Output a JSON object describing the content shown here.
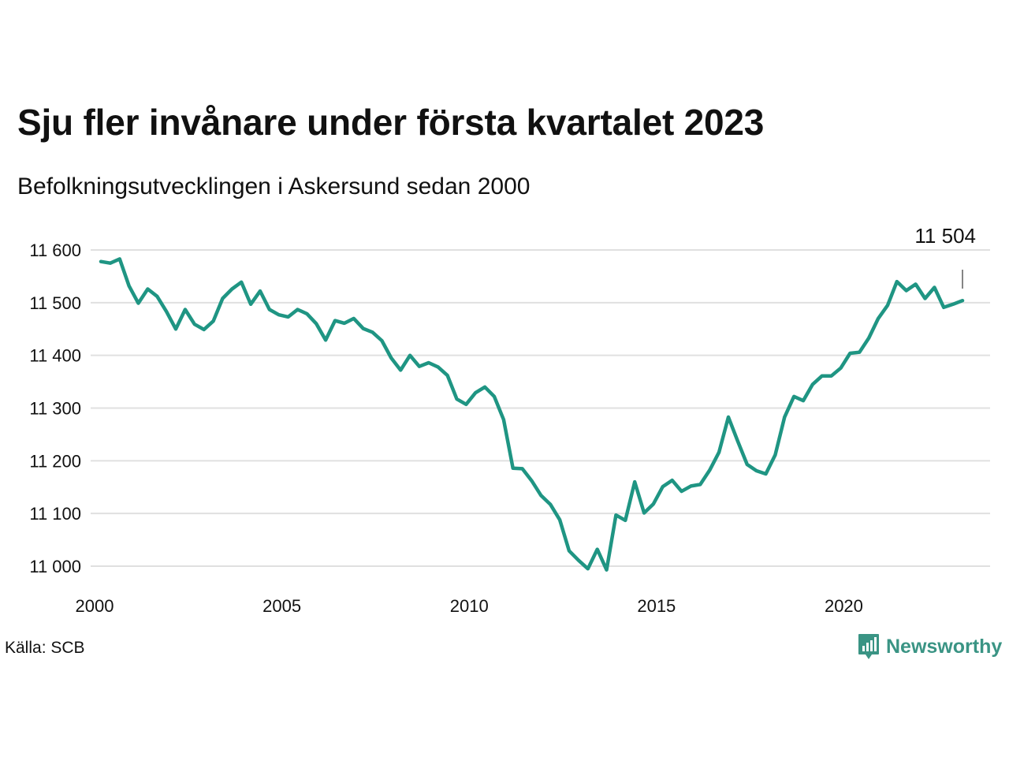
{
  "title": "Sju fler invånare under första kvartalet 2023",
  "subtitle": "Befolkningsutvecklingen i Askersund sedan 2000",
  "source": "Källa: SCB",
  "brand": {
    "name": "Newsworthy",
    "icon": "newsworthy-logo-icon",
    "color": "#3a9484"
  },
  "line_color": "#1f9583",
  "grid_color": "#e0e0e0",
  "chart_data": {
    "type": "line",
    "title": "Sju fler invånare under första kvartalet 2023",
    "subtitle": "Befolkningsutvecklingen i Askersund sedan 2000",
    "xlabel": "",
    "ylabel": "",
    "xlim": [
      2000,
      2023.5
    ],
    "ylim": [
      10990,
      11615
    ],
    "x_ticks": [
      2000,
      2005,
      2010,
      2015,
      2020
    ],
    "x_tick_labels": [
      "2000",
      "2005",
      "2010",
      "2015",
      "2020"
    ],
    "y_ticks": [
      11000,
      11100,
      11200,
      11300,
      11400,
      11500,
      11600
    ],
    "y_tick_labels": [
      "11 000",
      "11 100",
      "11 200",
      "11 300",
      "11 400",
      "11 500",
      "11 600"
    ],
    "grid": "horizontal",
    "x_start": "2000 Q1",
    "step": "quarter",
    "series": [
      {
        "values": [
          11578,
          11575,
          11583,
          11532,
          11499,
          11526,
          11512,
          11483,
          11450,
          11487,
          11459,
          11449,
          11465,
          11508,
          11526,
          11539,
          11497,
          11522,
          11487,
          11477,
          11473,
          11487,
          11479,
          11460,
          11429,
          11466,
          11461,
          11470,
          11451,
          11444,
          11428,
          11395,
          11372,
          11400,
          11379,
          11386,
          11378,
          11362,
          11317,
          11307,
          11329,
          11340,
          11322,
          11278,
          11186,
          11185,
          11162,
          11134,
          11117,
          11088,
          11029,
          11011,
          10995,
          11032,
          10993,
          11097,
          11087,
          11160,
          11101,
          11118,
          11151,
          11163,
          11142,
          11152,
          11155,
          11182,
          11216,
          11283,
          11237,
          11193,
          11181,
          11175,
          11211,
          11283,
          11322,
          11314,
          11345,
          11361,
          11361,
          11376,
          11404,
          11406,
          11433,
          11470,
          11495,
          11540,
          11523,
          11535,
          11508,
          11529,
          11491,
          11497,
          11504
        ]
      }
    ],
    "annotations": [
      {
        "text": "11 504",
        "target": "last point",
        "value": 11504
      }
    ]
  }
}
